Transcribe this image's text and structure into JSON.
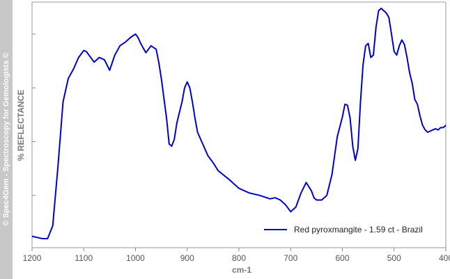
{
  "sidebar": {
    "text": "© Spec4Gem - Spectroscopy for Gemologists ©"
  },
  "chart_data": {
    "type": "line",
    "title": "",
    "xlabel": "cm-1",
    "ylabel": "% REFLECTANCE",
    "xlim": [
      1200,
      400
    ],
    "ylim": [
      0,
      100
    ],
    "x_reversed": true,
    "grid": false,
    "legend_position": "bottom-right",
    "x_ticks": [
      1200,
      1100,
      1000,
      900,
      800,
      700,
      600,
      500,
      400
    ],
    "x_tick_labels": [
      "1200",
      "1100",
      "1000",
      "900",
      "800",
      "700",
      "600",
      "500",
      "400"
    ],
    "y_ticks": [
      20,
      43,
      66,
      89
    ],
    "line_color": "#0000cc",
    "series": [
      {
        "name": "Red pyroxmangite - 1.59 ct - Brazil",
        "x": [
          1200,
          1190,
          1180,
          1170,
          1160,
          1150,
          1140,
          1130,
          1120,
          1110,
          1100,
          1095,
          1090,
          1080,
          1070,
          1060,
          1050,
          1040,
          1030,
          1020,
          1010,
          1000,
          995,
          990,
          980,
          970,
          960,
          955,
          950,
          940,
          935,
          930,
          925,
          920,
          910,
          905,
          900,
          895,
          890,
          885,
          880,
          870,
          860,
          850,
          840,
          820,
          800,
          780,
          760,
          740,
          730,
          720,
          710,
          700,
          690,
          680,
          670,
          660,
          655,
          650,
          640,
          630,
          620,
          610,
          600,
          595,
          590,
          585,
          580,
          575,
          570,
          565,
          560,
          555,
          550,
          545,
          540,
          535,
          530,
          525,
          520,
          515,
          510,
          505,
          500,
          495,
          490,
          485,
          480,
          475,
          470,
          465,
          460,
          455,
          450,
          445,
          440,
          435,
          430,
          425,
          420,
          415,
          410,
          405,
          400
        ],
        "y": [
          2.5,
          2,
          1.5,
          1.5,
          7,
          32,
          60,
          70,
          74,
          79,
          82,
          81.5,
          80,
          77,
          79,
          78,
          73.5,
          80,
          84,
          85.5,
          87.5,
          89,
          87.5,
          85,
          81,
          84,
          82.5,
          77,
          70,
          53,
          42,
          41,
          44,
          51,
          60,
          66,
          68.5,
          66,
          60,
          53,
          47,
          42,
          37,
          34,
          30.5,
          27,
          23,
          21,
          20,
          18.5,
          19,
          18,
          16,
          13,
          15,
          21,
          25.5,
          22,
          19,
          18,
          18,
          20,
          29,
          45,
          53.5,
          59,
          58.5,
          53,
          41,
          35,
          40,
          60,
          76,
          84,
          85,
          79,
          80,
          92,
          99,
          100,
          99,
          98,
          96,
          89,
          81.5,
          80,
          84,
          86.5,
          84.5,
          79,
          72.5,
          68,
          61,
          59,
          54,
          50,
          48,
          47,
          47.5,
          48,
          48.5,
          48,
          49,
          49,
          50
        ]
      }
    ]
  }
}
